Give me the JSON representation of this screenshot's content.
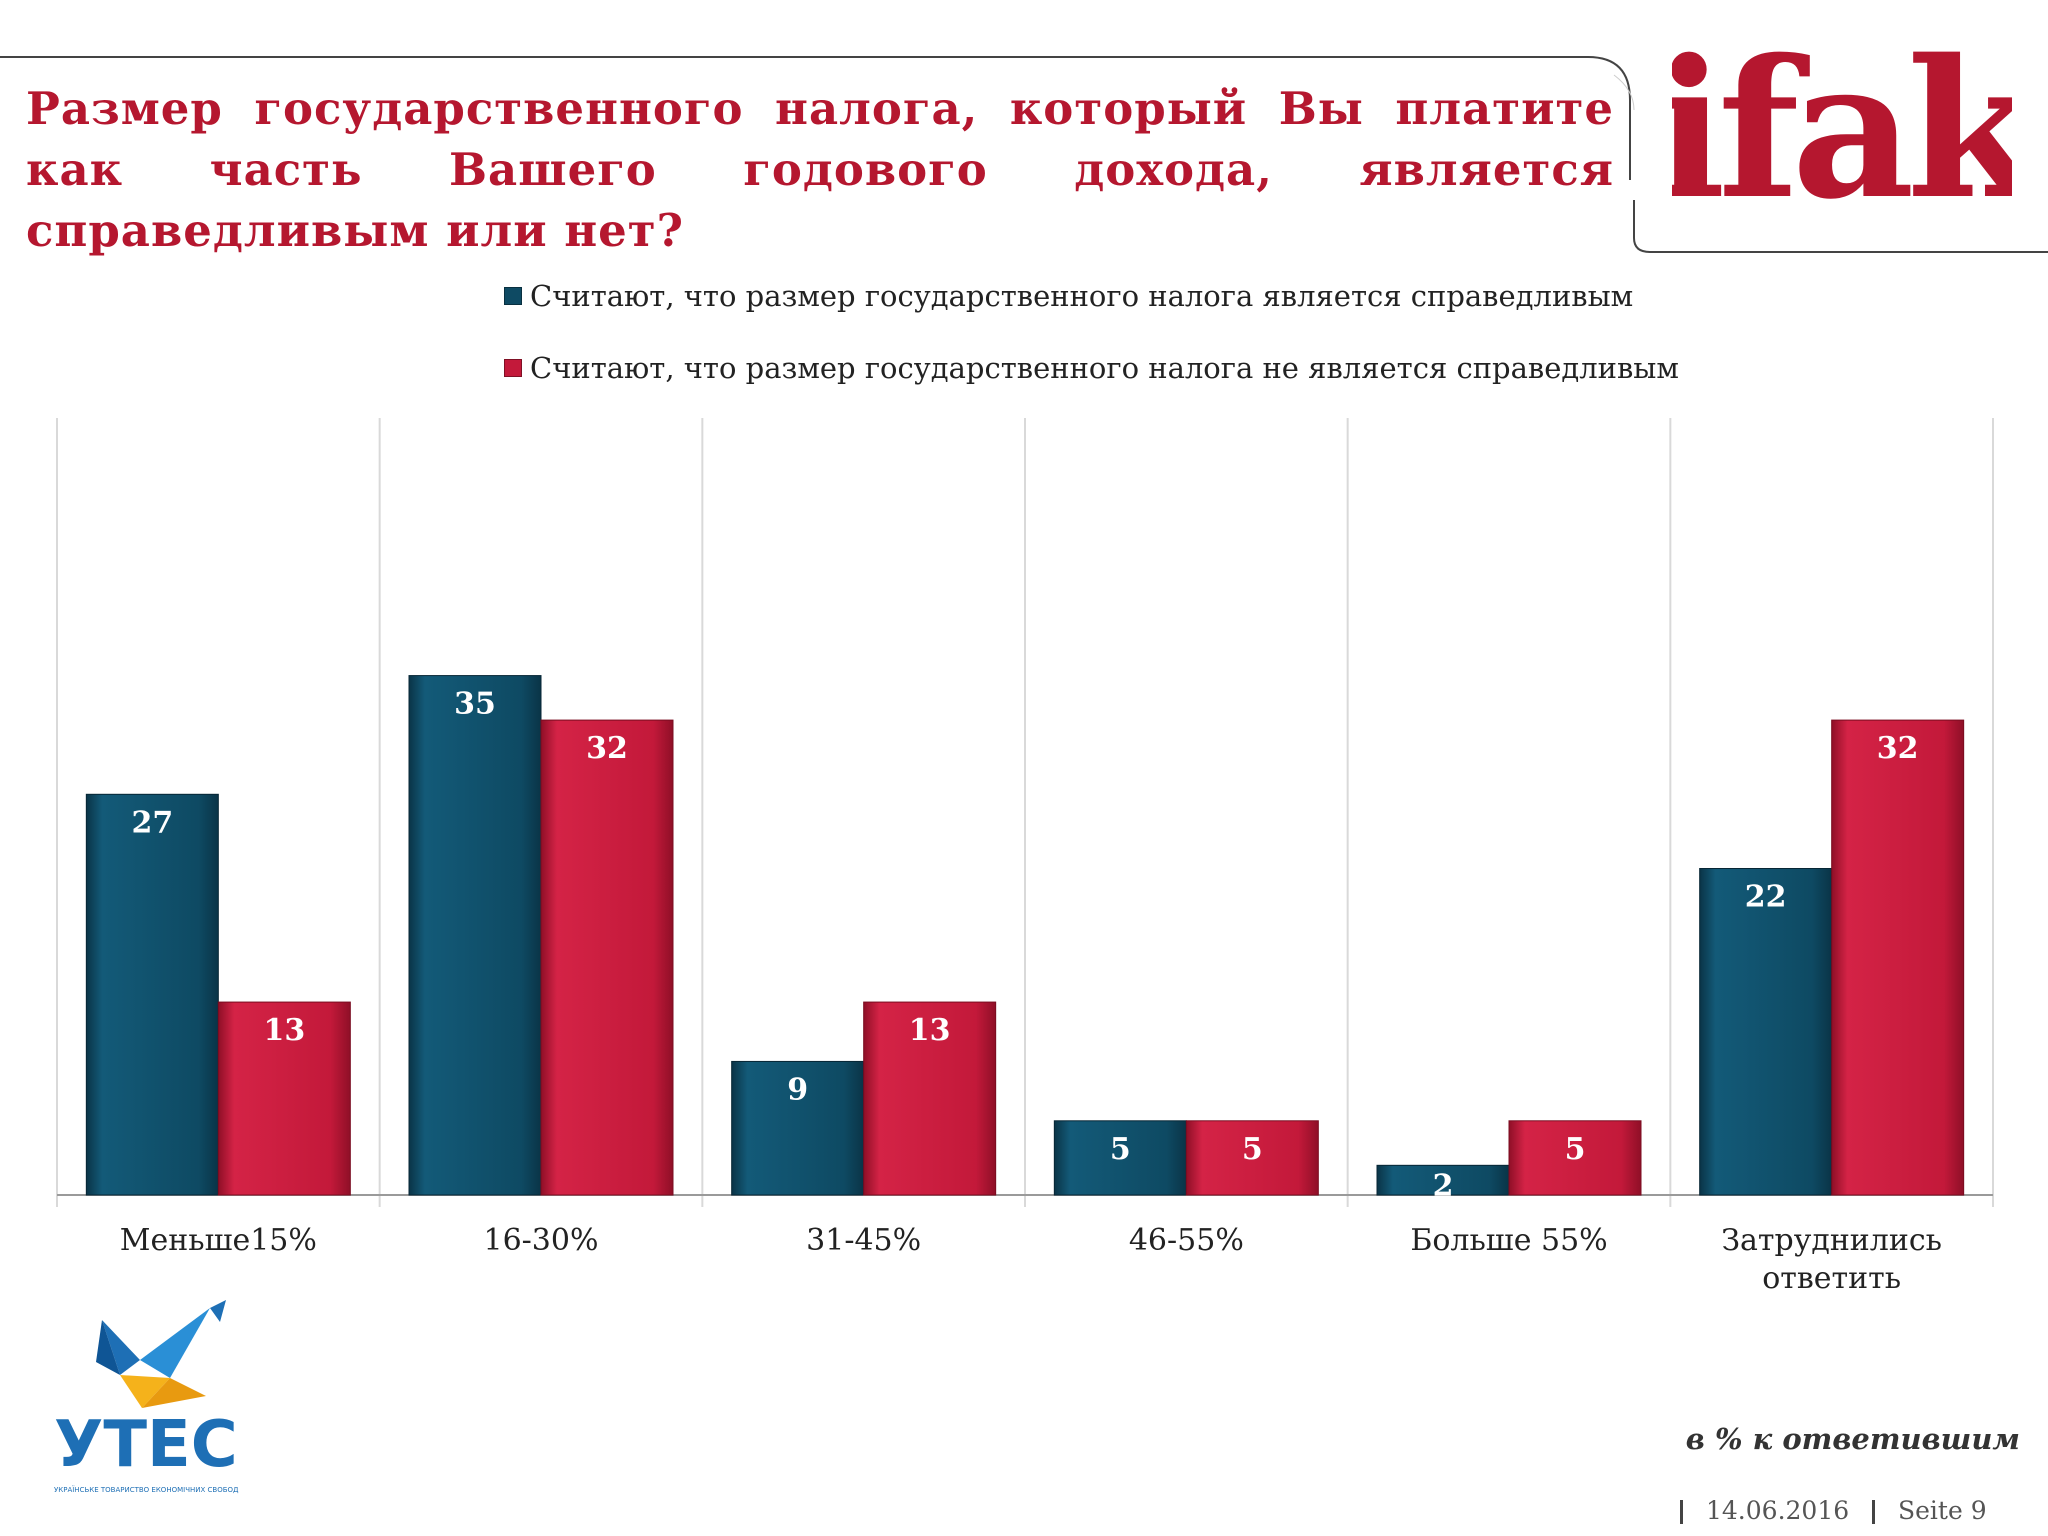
{
  "header": {
    "title": "Размер государственного налога, который Вы платите как часть Вашего годового дохода, является справедливым или нет?",
    "brand": "ifak"
  },
  "chart_data": {
    "type": "bar",
    "categories": [
      "Меньше15%",
      "16-30%",
      "31-45%",
      "46-55%",
      "Больше 55%",
      "Затруднились ответить"
    ],
    "series": [
      {
        "name": "Считают, что размер государственного налога является справедливым",
        "color": "#0e4a63",
        "values": [
          27,
          35,
          9,
          5,
          2,
          22
        ]
      },
      {
        "name": "Считают, что размер государственного налога не является справедливым",
        "color": "#c3193a",
        "values": [
          13,
          32,
          13,
          5,
          5,
          32
        ]
      }
    ],
    "ylim": [
      0,
      50
    ],
    "grid": "vertical separators",
    "legend": "top-center"
  },
  "footer": {
    "note": "в % к ответившим",
    "date": "14.06.2016",
    "page": "Seite 9",
    "org_logo_text": "УТЕС",
    "org_logo_subtext": "УКРАЇНСЬКЕ ТОВАРИСТВО ЕКОНОМІЧНИХ СВОБОД"
  }
}
